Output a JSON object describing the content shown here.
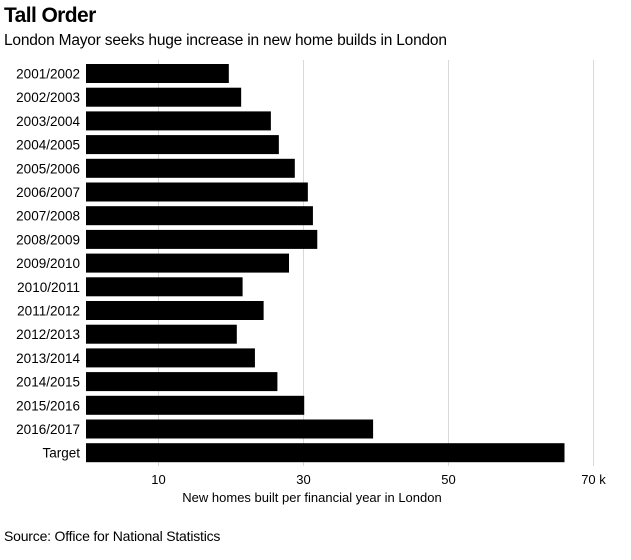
{
  "chart_data": {
    "type": "bar",
    "orientation": "horizontal",
    "title": "Tall Order",
    "subtitle": "London Mayor seeks huge increase in new home builds in London",
    "categories": [
      "2001/2002",
      "2002/2003",
      "2003/2004",
      "2004/2005",
      "2005/2006",
      "2006/2007",
      "2007/2008",
      "2008/2009",
      "2009/2010",
      "2010/2011",
      "2011/2012",
      "2012/2013",
      "2013/2014",
      "2014/2015",
      "2015/2016",
      "2016/2017",
      "Target"
    ],
    "values": [
      19.7,
      21.4,
      25.5,
      26.6,
      28.8,
      30.6,
      31.3,
      31.9,
      28.0,
      21.6,
      24.5,
      20.8,
      23.3,
      26.4,
      30.1,
      39.6,
      66.0
    ],
    "xlabel": "New homes built per financial year in London",
    "xticks": [
      10,
      30,
      50,
      70
    ],
    "xtick_labels": [
      "10",
      "30",
      "50",
      "70 k"
    ],
    "xlim": [
      0,
      70
    ],
    "grid": true,
    "bar_color": "#000000",
    "grid_color": "#d9d9d9"
  },
  "source": "Source: Office for National Statistics"
}
